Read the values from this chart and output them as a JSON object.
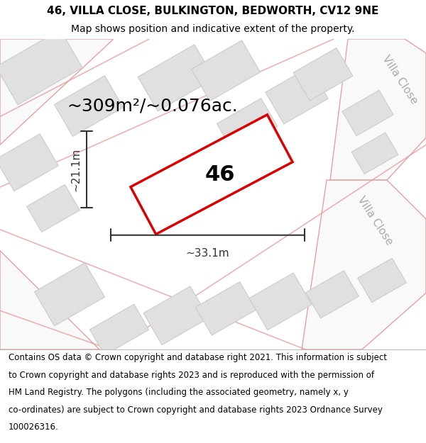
{
  "title_line1": "46, VILLA CLOSE, BULKINGTON, BEDWORTH, CV12 9NE",
  "title_line2": "Map shows position and indicative extent of the property.",
  "area_text": "~309m²/~0.076ac.",
  "label_46": "46",
  "dim_width": "~33.1m",
  "dim_height": "~21.1m",
  "street_name_right_top": "Villa Close",
  "street_name_right_bottom": "Villa Close",
  "footer_lines": [
    "Contains OS data © Crown copyright and database right 2021. This information is subject",
    "to Crown copyright and database rights 2023 and is reproduced with the permission of",
    "HM Land Registry. The polygons (including the associated geometry, namely x, y",
    "co-ordinates) are subject to Crown copyright and database rights 2023 Ordnance Survey",
    "100026316."
  ],
  "map_bg": "#ffffff",
  "road_stroke": "#e8a0a0",
  "building_fill": "#e0e0e0",
  "building_stroke": "#cccccc",
  "highlight_stroke": "#dd0000",
  "highlight_fill": "#ffffff",
  "dim_color": "#333333",
  "text_color": "#000000",
  "title_fontsize": 11,
  "subtitle_fontsize": 10,
  "area_fontsize": 18,
  "label_fontsize": 22,
  "dim_fontsize": 11,
  "street_fontsize": 11,
  "footer_fontsize": 8.5
}
